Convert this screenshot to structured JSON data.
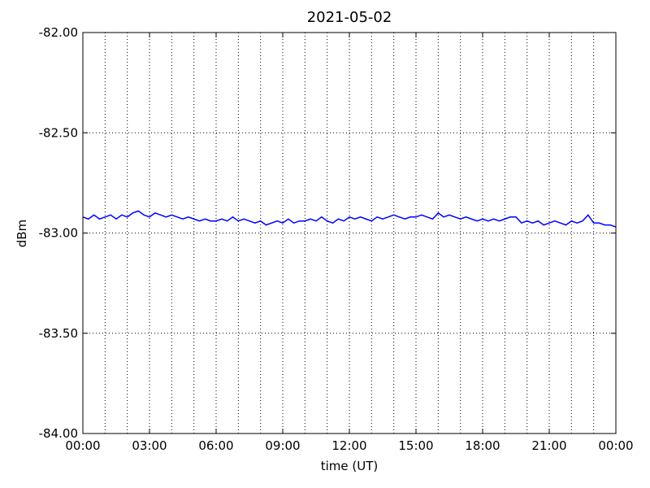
{
  "chart_data": {
    "type": "line",
    "title": "2021-05-02",
    "x_label": "time (UT)",
    "y_label": "dBm",
    "x": [
      0,
      0.25,
      0.5,
      0.75,
      1,
      1.25,
      1.5,
      1.75,
      2,
      2.25,
      2.5,
      2.75,
      3,
      3.25,
      3.5,
      3.75,
      4,
      4.25,
      4.5,
      4.75,
      5,
      5.25,
      5.5,
      5.75,
      6,
      6.25,
      6.5,
      6.75,
      7,
      7.25,
      7.5,
      7.75,
      8,
      8.25,
      8.5,
      8.75,
      9,
      9.25,
      9.5,
      9.75,
      10,
      10.25,
      10.5,
      10.75,
      11,
      11.25,
      11.5,
      11.75,
      12,
      12.25,
      12.5,
      12.75,
      13,
      13.25,
      13.5,
      13.75,
      14,
      14.25,
      14.5,
      14.75,
      15,
      15.25,
      15.5,
      15.75,
      16,
      16.25,
      16.5,
      16.75,
      17,
      17.25,
      17.5,
      17.75,
      18,
      18.25,
      18.5,
      18.75,
      19,
      19.25,
      19.5,
      19.75,
      20,
      20.25,
      20.5,
      20.75,
      21,
      21.25,
      21.5,
      21.75,
      22,
      22.25,
      22.5,
      22.75,
      23,
      23.25,
      23.5,
      23.75,
      24
    ],
    "series": [
      {
        "color": "#0000ff",
        "values": [
          -82.92,
          -82.93,
          -82.91,
          -82.93,
          -82.92,
          -82.91,
          -82.93,
          -82.91,
          -82.92,
          -82.9,
          -82.89,
          -82.91,
          -82.92,
          -82.9,
          -82.91,
          -82.92,
          -82.91,
          -82.92,
          -82.93,
          -82.92,
          -82.93,
          -82.94,
          -82.93,
          -82.94,
          -82.94,
          -82.93,
          -82.94,
          -82.92,
          -82.94,
          -82.93,
          -82.94,
          -82.95,
          -82.94,
          -82.96,
          -82.95,
          -82.94,
          -82.95,
          -82.93,
          -82.95,
          -82.94,
          -82.94,
          -82.93,
          -82.94,
          -82.92,
          -82.94,
          -82.95,
          -82.93,
          -82.94,
          -82.92,
          -82.93,
          -82.92,
          -82.93,
          -82.94,
          -82.92,
          -82.93,
          -82.92,
          -82.91,
          -82.92,
          -82.93,
          -82.92,
          -82.92,
          -82.91,
          -82.92,
          -82.93,
          -82.9,
          -82.92,
          -82.91,
          -82.92,
          -82.93,
          -82.92,
          -82.93,
          -82.94,
          -82.93,
          -82.94,
          -82.93,
          -82.94,
          -82.93,
          -82.92,
          -82.92,
          -82.95,
          -82.94,
          -82.95,
          -82.94,
          -82.96,
          -82.95,
          -82.94,
          -82.95,
          -82.96,
          -82.94,
          -82.95,
          -82.94,
          -82.91,
          -82.95,
          -82.95,
          -82.96,
          -82.96,
          -82.97
        ]
      }
    ],
    "xlim": [
      0,
      24
    ],
    "xticks": [
      {
        "value": 0,
        "label": "00:00"
      },
      {
        "value": 3,
        "label": "03:00"
      },
      {
        "value": 6,
        "label": "06:00"
      },
      {
        "value": 9,
        "label": "09:00"
      },
      {
        "value": 12,
        "label": "12:00"
      },
      {
        "value": 15,
        "label": "15:00"
      },
      {
        "value": 18,
        "label": "18:00"
      },
      {
        "value": 21,
        "label": "21:00"
      },
      {
        "value": 24,
        "label": "00:00"
      }
    ],
    "x_minor_ticks": [
      1,
      2,
      4,
      5,
      7,
      8,
      10,
      11,
      13,
      14,
      16,
      17,
      19,
      20,
      22,
      23
    ],
    "ylim": [
      -84,
      -82
    ],
    "yticks": [
      {
        "value": -84,
        "label": "-84.00"
      },
      {
        "value": -83.5,
        "label": "-83.50"
      },
      {
        "value": -83,
        "label": "-83.00"
      },
      {
        "value": -82.5,
        "label": "-82.50"
      },
      {
        "value": -82,
        "label": "-82.00"
      }
    ],
    "grid": true
  }
}
